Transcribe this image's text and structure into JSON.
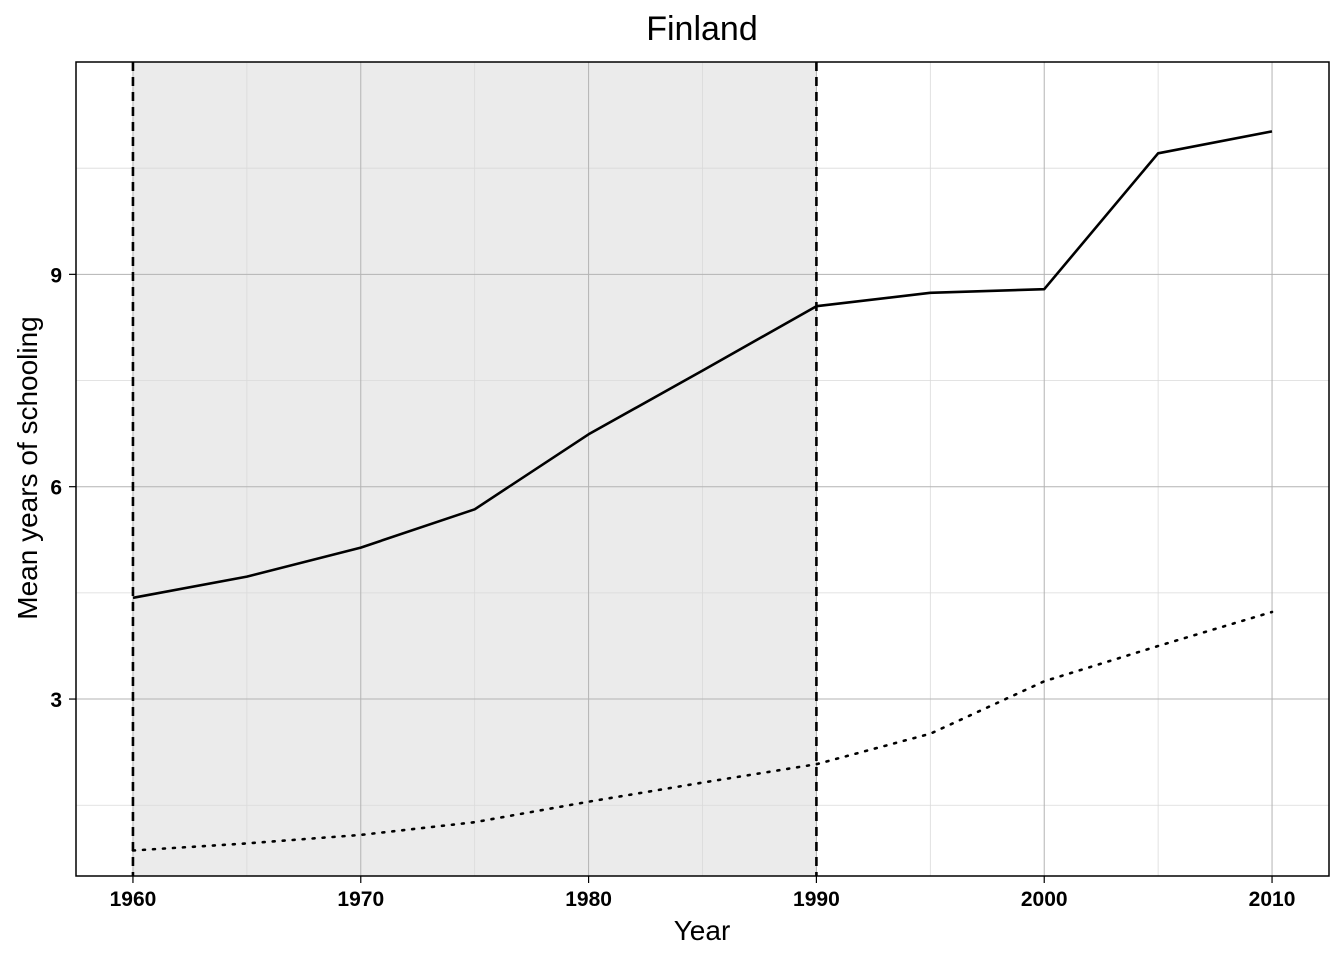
{
  "chart_data": {
    "type": "line",
    "title": "Finland",
    "xlabel": "Year",
    "ylabel": "Mean years of schooling",
    "xlim": [
      1957.5,
      2012.5
    ],
    "ylim": [
      0.5,
      12.0
    ],
    "x_ticks": [
      1960,
      1970,
      1980,
      1990,
      2000,
      2010
    ],
    "x_tick_labels": [
      "1960",
      "1970",
      "1980",
      "1990",
      "2000",
      "2010"
    ],
    "y_ticks": [
      3,
      6,
      9
    ],
    "y_tick_labels": [
      "3",
      "6",
      "9"
    ],
    "grid": true,
    "shaded_region": {
      "x_start": 1960,
      "x_end": 1990,
      "color": "#ebebeb"
    },
    "vertical_lines": [
      1960,
      1990
    ],
    "series": [
      {
        "style": "solid",
        "x": [
          1960,
          1965,
          1970,
          1975,
          1980,
          1985,
          1990,
          1995,
          2000,
          2005,
          2010
        ],
        "values": [
          4.43,
          4.73,
          5.14,
          5.68,
          6.74,
          7.64,
          8.55,
          8.74,
          8.79,
          10.71,
          11.02
        ]
      },
      {
        "style": "dotted",
        "x": [
          1960,
          1965,
          1970,
          1975,
          1980,
          1985,
          1990,
          1995,
          2000,
          2005,
          2010
        ],
        "values": [
          0.86,
          0.96,
          1.08,
          1.26,
          1.55,
          1.82,
          2.08,
          2.51,
          3.25,
          3.75,
          4.23
        ]
      }
    ]
  }
}
